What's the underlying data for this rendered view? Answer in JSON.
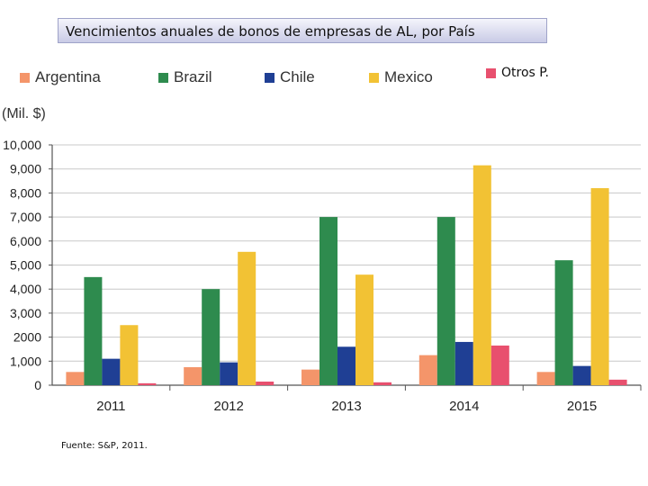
{
  "header": {
    "title": "Vencimientos anuales de bonos de empresas de AL, por País"
  },
  "footer": {
    "source": "Fuente: S&P, 2011."
  },
  "chart_data": {
    "type": "bar",
    "title": "Vencimientos anuales de bonos de empresas de AL, por País",
    "ylabel": "(Mil. $)",
    "xlabel": "",
    "ylim": [
      0,
      10000
    ],
    "categories": [
      "2011",
      "2012",
      "2013",
      "2014",
      "2015"
    ],
    "y_ticks": [
      "0",
      "1,000",
      "2000",
      "3,000",
      "4,000",
      "5,000",
      "6,000",
      "7,000",
      "8,000",
      "9,000",
      "10,000"
    ],
    "y_tick_values": [
      0,
      1000,
      2000,
      3000,
      4000,
      5000,
      6000,
      7000,
      8000,
      9000,
      10000
    ],
    "series": [
      {
        "name": "Argentina",
        "color": "#f4956a",
        "values": [
          550,
          750,
          650,
          1250,
          550
        ]
      },
      {
        "name": "Brazil",
        "color": "#2e8b4e",
        "values": [
          4500,
          4000,
          7000,
          7000,
          5200
        ]
      },
      {
        "name": "Chile",
        "color": "#1f3f94",
        "values": [
          1100,
          950,
          1600,
          1800,
          800
        ]
      },
      {
        "name": "Mexico",
        "color": "#f2c234",
        "values": [
          2500,
          5550,
          4600,
          9150,
          8200
        ]
      },
      {
        "name": "Otros P.",
        "color": "#e8506e",
        "values": [
          80,
          150,
          120,
          1650,
          230
        ]
      }
    ],
    "grid": true,
    "legend_position": "top"
  }
}
